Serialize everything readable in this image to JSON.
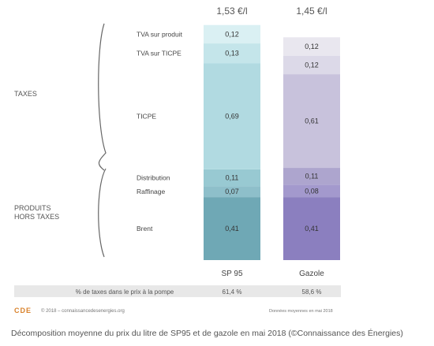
{
  "chart_data": {
    "type": "bar",
    "title": "",
    "categories": [
      "SP 95",
      "Gazole"
    ],
    "totals": [
      "1,53 €/l",
      "1,45 €/l"
    ],
    "segments": [
      {
        "name": "Brent",
        "values": [
          0.41,
          0.41
        ],
        "labels": [
          "0,41",
          "0,41"
        ],
        "colors": [
          "#6fa8b5",
          "#8b7fbf"
        ]
      },
      {
        "name": "Raffinage",
        "values": [
          0.07,
          0.08
        ],
        "labels": [
          "0,07",
          "0,08"
        ],
        "colors": [
          "#8ebfca",
          "#a399cd"
        ]
      },
      {
        "name": "Distribution",
        "values": [
          0.11,
          0.11
        ],
        "labels": [
          "0,11",
          "0,11"
        ],
        "colors": [
          "#98c9d2",
          "#ada5ce"
        ]
      },
      {
        "name": "TICPE",
        "values": [
          0.69,
          0.61
        ],
        "labels": [
          "0,69",
          "0,61"
        ],
        "colors": [
          "#b1dae1",
          "#c8c2dc"
        ]
      },
      {
        "name": "TVA sur TICPE",
        "values": [
          0.13,
          0.12
        ],
        "labels": [
          "0,13",
          "0,12"
        ],
        "colors": [
          "#c4e5ea",
          "#dcd9e8"
        ]
      },
      {
        "name": "TVA sur produit",
        "values": [
          0.12,
          0.12
        ],
        "labels": [
          "0,12",
          "0,12"
        ],
        "colors": [
          "#daf0f3",
          "#e9e7ef"
        ]
      }
    ],
    "group_labels": {
      "taxes": "TAXES",
      "ht_line1": "PRODUITS",
      "ht_line2": "HORS TAXES"
    },
    "tax_row": {
      "label": "% de taxes dans le prix à la pompe",
      "values": [
        "61,4 %",
        "58,6 %"
      ]
    }
  },
  "footer": {
    "logo": "CDE",
    "copyright": "© 2018 – connaissancedesenergies.org",
    "note": "Données moyennes en mai 2018"
  },
  "caption": "Décomposition moyenne du prix du litre de SP95 et de gazole en mai 2018 (©Connaissance des Énergies)"
}
